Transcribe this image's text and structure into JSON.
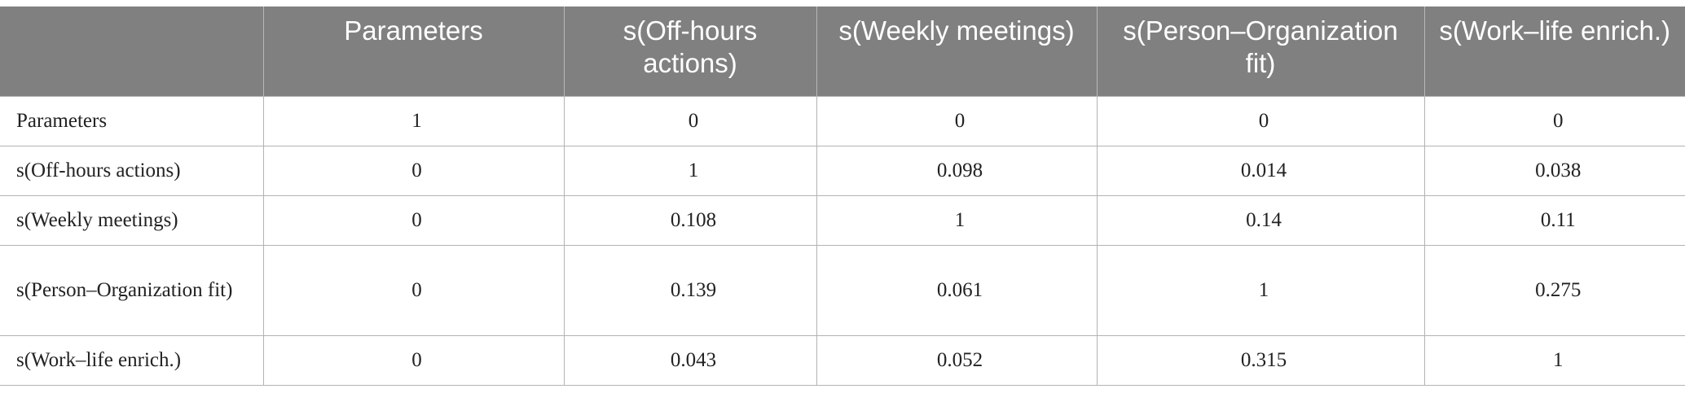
{
  "table": {
    "header": [
      "",
      "Parameters",
      "s(Off-hours actions)",
      "s(Weekly meetings)",
      "s(Person–Organization fit)",
      "s(Work–life enrich.)"
    ],
    "rows": [
      {
        "label": "Parameters",
        "values": [
          "1",
          "0",
          "0",
          "0",
          "0"
        ]
      },
      {
        "label": "s(Off-hours actions)",
        "values": [
          "0",
          "1",
          "0.098",
          "0.014",
          "0.038"
        ]
      },
      {
        "label": "s(Weekly meetings)",
        "values": [
          "0",
          "0.108",
          "1",
          "0.14",
          "0.11"
        ]
      },
      {
        "label": "s(Person–Organization fit)",
        "values": [
          "0",
          "0.139",
          "0.061",
          "1",
          "0.275"
        ]
      },
      {
        "label": "s(Work–life enrich.)",
        "values": [
          "0",
          "0.043",
          "0.052",
          "0.315",
          "1"
        ]
      }
    ]
  },
  "colors": {
    "header_bg": "#7f807f",
    "header_text": "#ffffff",
    "grid_line": "#b3b3b3"
  }
}
